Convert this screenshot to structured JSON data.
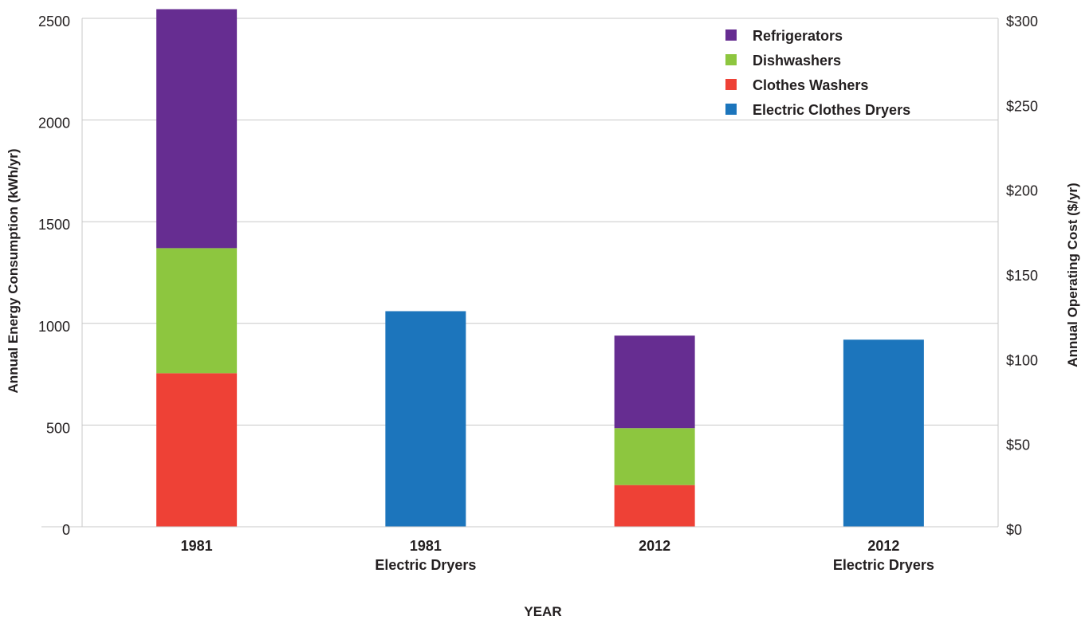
{
  "chart_data": {
    "type": "bar",
    "stacked": true,
    "categories": [
      [
        "1981"
      ],
      [
        "1981",
        "Electric Dryers"
      ],
      [
        "2012"
      ],
      [
        "2012",
        "Electric Dryers"
      ]
    ],
    "series": [
      {
        "name": "Clothes Washers",
        "color": "#ee4136",
        "values": [
          755,
          0,
          205,
          0
        ]
      },
      {
        "name": "Dishwashers",
        "color": "#8dc63f",
        "values": [
          615,
          0,
          280,
          0
        ]
      },
      {
        "name": "Refrigerators",
        "color": "#662d91",
        "values": [
          1175,
          0,
          455,
          0
        ]
      },
      {
        "name": "Electric Clothes Dryers",
        "color": "#1c75bc",
        "values": [
          0,
          1060,
          0,
          920
        ]
      }
    ],
    "legend_order": [
      "Refrigerators",
      "Dishwashers",
      "Clothes Washers",
      "Electric Clothes Dryers"
    ],
    "legend_position": "top-right",
    "xlabel": "YEAR",
    "ylabel": "Annual Energy Consumption (kWh/yr)",
    "y2label": "Annual Operating Cost  ($/yr)",
    "ylim": [
      0,
      2500
    ],
    "yticks": [
      "0",
      "500",
      "1000",
      "1500",
      "2000",
      "2500"
    ],
    "y2lim": [
      0,
      300
    ],
    "y2ticks": [
      "$0",
      "$50",
      "$100",
      "$150",
      "$200",
      "$250",
      "$300"
    ],
    "grid": true
  }
}
